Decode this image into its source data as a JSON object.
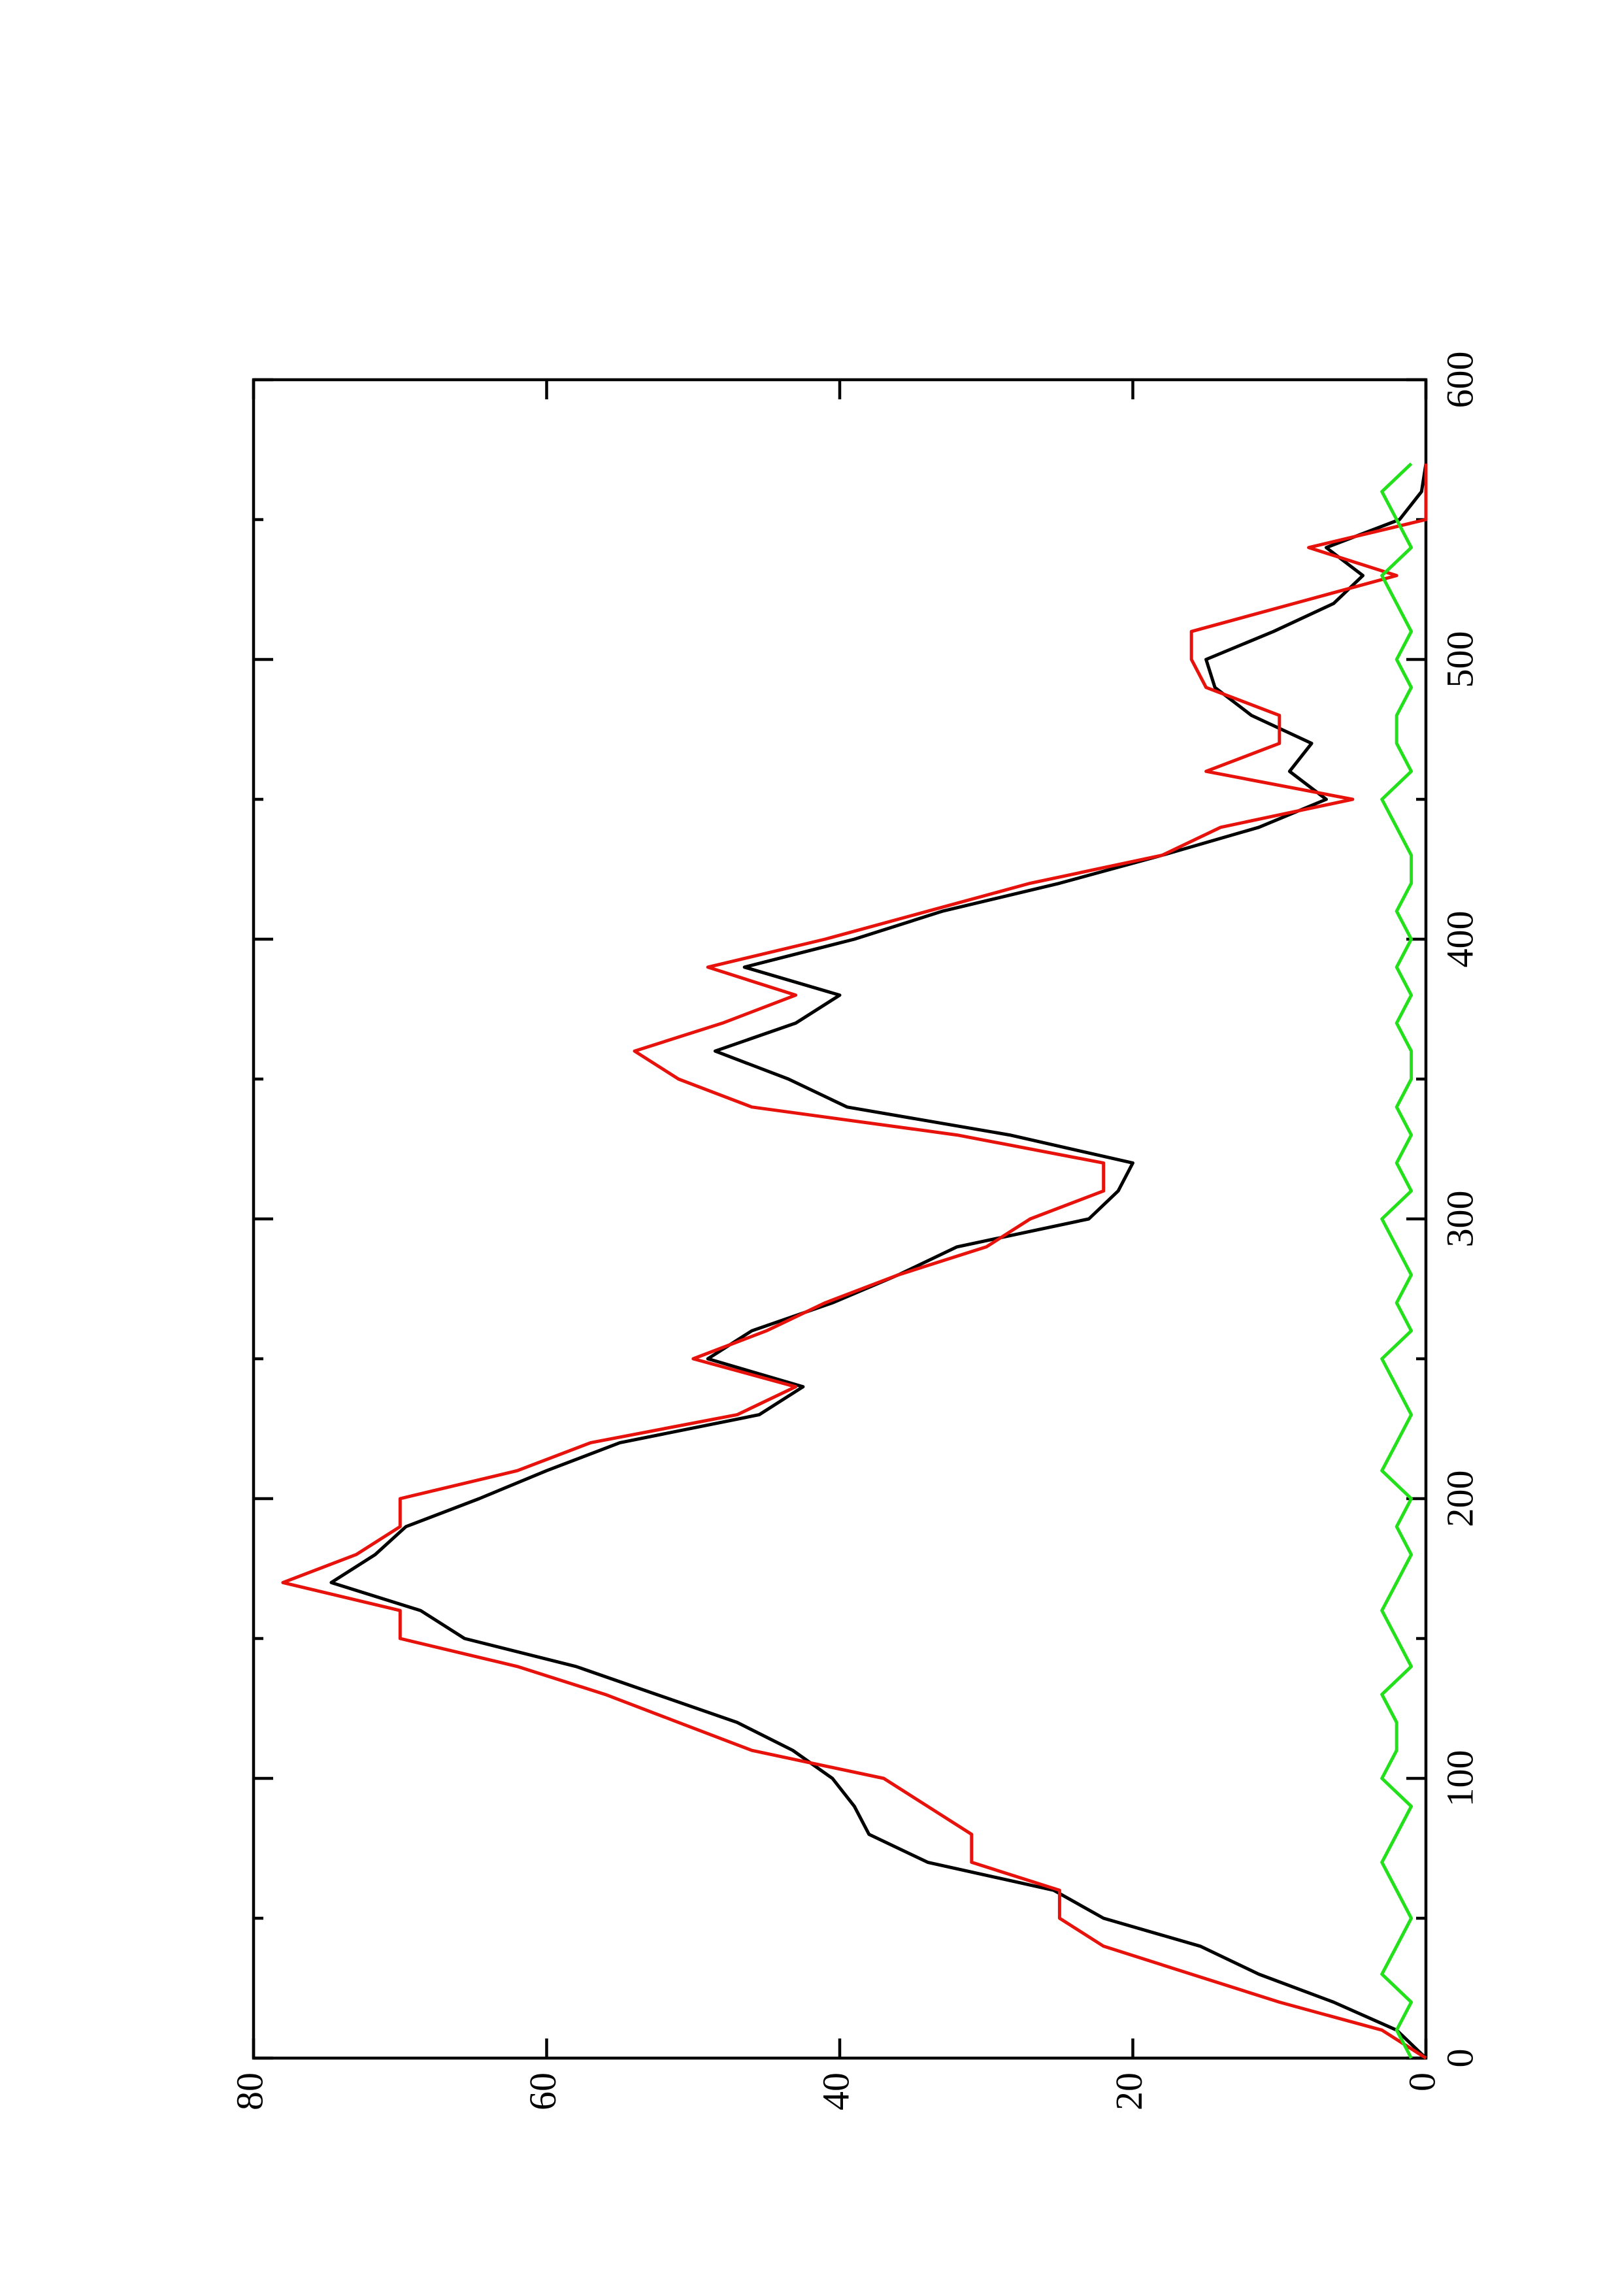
{
  "chart_data": {
    "type": "line",
    "x": [
      0,
      10,
      20,
      30,
      40,
      50,
      60,
      70,
      80,
      90,
      100,
      110,
      120,
      130,
      140,
      150,
      160,
      170,
      180,
      190,
      200,
      210,
      220,
      230,
      240,
      250,
      260,
      270,
      280,
      290,
      300,
      310,
      320,
      330,
      340,
      350,
      360,
      370,
      380,
      390,
      400,
      410,
      420,
      430,
      440,
      450,
      460,
      470,
      480,
      490,
      500,
      510,
      520,
      530,
      540,
      550,
      560,
      570
    ],
    "series": [
      {
        "color": "#000000",
        "values": [
          0,
          2,
          6.3,
          11.4,
          15.4,
          22,
          25.4,
          34,
          38,
          39,
          40.5,
          43.2,
          47,
          52.5,
          58,
          65.6,
          68.6,
          74.7,
          71.7,
          69.6,
          64.6,
          60,
          55,
          45.5,
          42.5,
          49,
          46,
          40.5,
          36,
          32,
          23,
          21,
          20,
          28.4,
          39.5,
          43.5,
          48.5,
          43,
          40,
          46.5,
          39,
          33,
          25,
          18,
          11.4,
          6.8,
          9.3,
          7.8,
          11.9,
          14.4,
          15,
          10.4,
          6.3,
          4.3,
          6.8,
          1.8,
          0.3,
          0
        ]
      },
      {
        "color": "#e8120c",
        "values": [
          0,
          3,
          10,
          16,
          22,
          25,
          25,
          31,
          31,
          34,
          37,
          46,
          51,
          56,
          62,
          70,
          70,
          78,
          73,
          70,
          70,
          62,
          57,
          47,
          43,
          50,
          45,
          41,
          36,
          30,
          27,
          22,
          22,
          32,
          46,
          51,
          54,
          48,
          43,
          49,
          41,
          34,
          27,
          18,
          14,
          5,
          15,
          10,
          10,
          15,
          16,
          16,
          9,
          2,
          8,
          0,
          0,
          0
        ]
      },
      {
        "color": "#22e01a",
        "values": [
          1,
          2,
          1,
          3,
          2,
          1,
          2,
          3,
          2,
          1,
          3,
          2,
          2,
          3,
          1,
          2,
          3,
          2,
          1,
          2,
          1,
          3,
          2,
          1,
          2,
          3,
          1,
          2,
          1,
          2,
          3,
          1,
          2,
          1,
          2,
          1,
          1,
          2,
          1,
          2,
          1,
          2,
          1,
          1,
          2,
          3,
          1,
          2,
          2,
          1,
          2,
          1,
          2,
          3,
          1,
          2,
          3,
          1
        ]
      }
    ],
    "xlim": [
      0,
      600
    ],
    "xticks": [
      0,
      100,
      200,
      300,
      400,
      500,
      600
    ],
    "xticks_minor": [
      50,
      150,
      250,
      350,
      450,
      550
    ],
    "ylim": [
      0,
      80
    ],
    "yticks": [
      0,
      20,
      40,
      60,
      80
    ]
  }
}
